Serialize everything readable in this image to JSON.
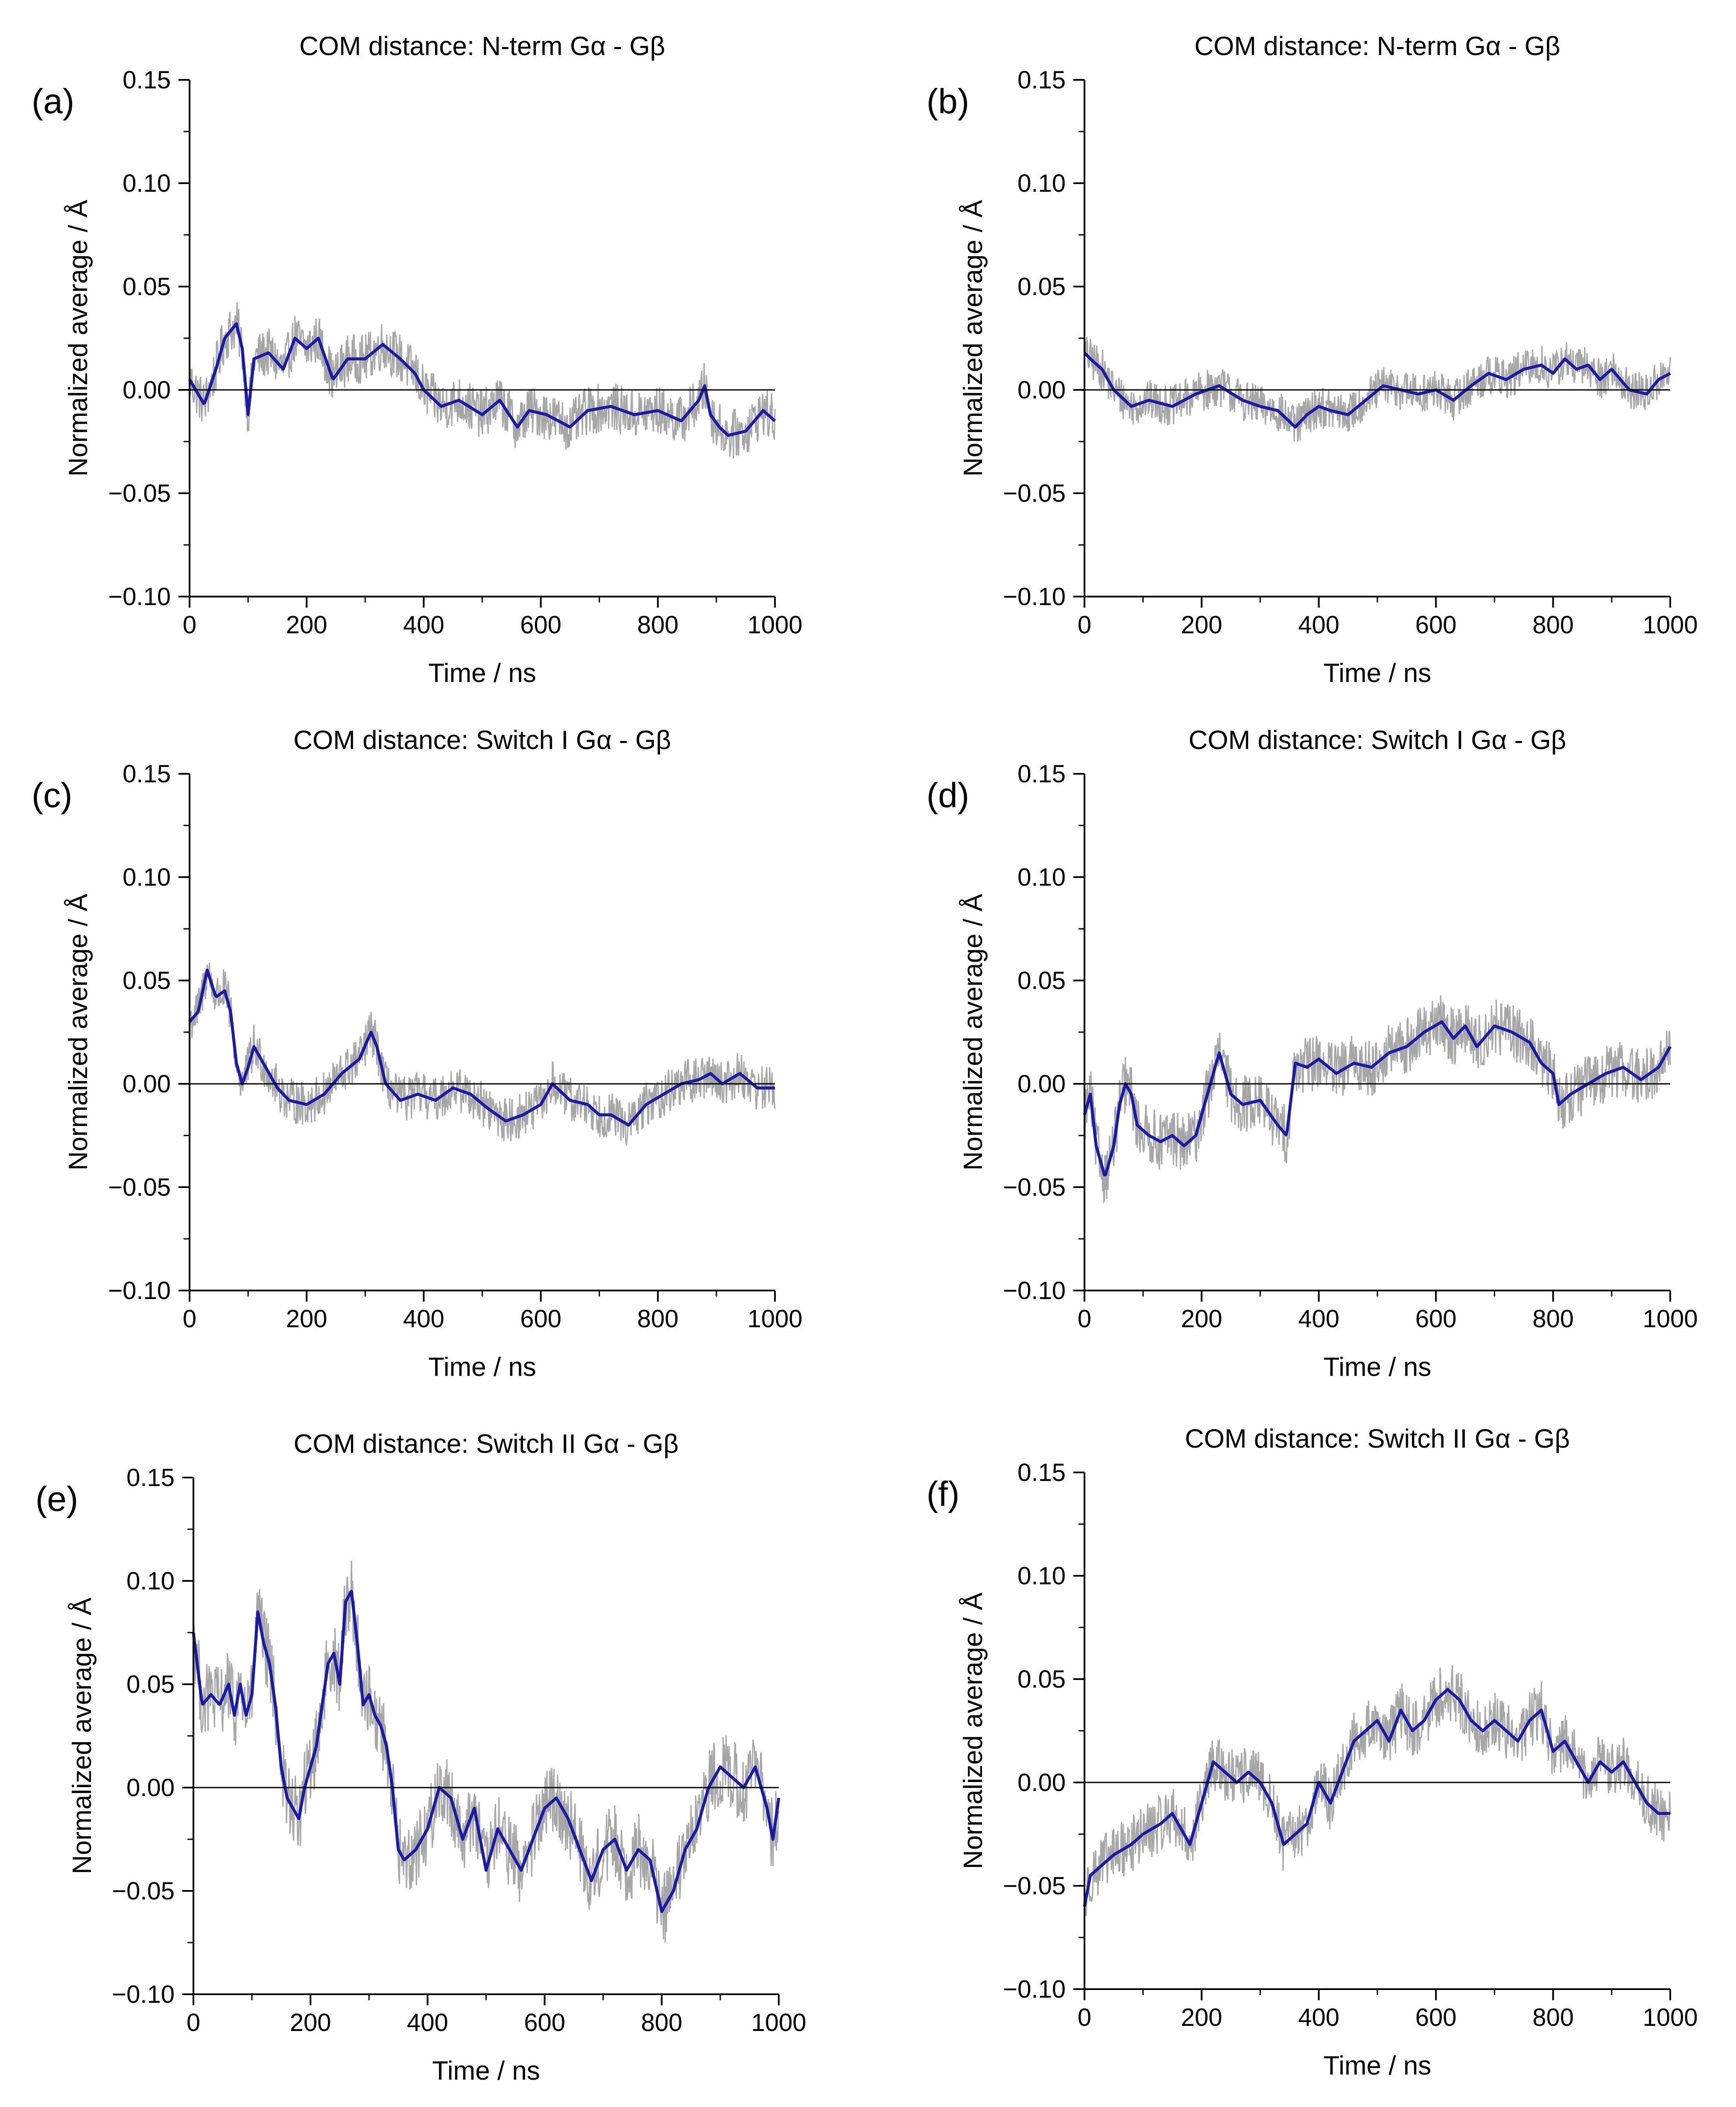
{
  "figure": {
    "colors": {
      "raw": "#a6a6a6",
      "smoothed": "#1a1aa6",
      "axis": "#000000"
    }
  },
  "chart_data": [
    {
      "type": "line",
      "panel_label": "(a)",
      "title": "COM distance: N-term Gα - Gβ",
      "xlabel": "Time / ns",
      "ylabel": "Normalized average / Å",
      "xlim": [
        0,
        1000
      ],
      "ylim": [
        -0.1,
        0.15
      ],
      "xticks": [
        0,
        200,
        400,
        600,
        800,
        1000
      ],
      "xtick_labels": [
        "0",
        "200",
        "400",
        "600",
        "800",
        "1000"
      ],
      "yticks": [
        -0.1,
        -0.05,
        0.0,
        0.05,
        0.1,
        0.15
      ],
      "ytick_labels": [
        "−0.10",
        "−0.05",
        "0.00",
        "0.05",
        "0.10",
        "0.15"
      ],
      "zero_line": true,
      "grid": false,
      "noise_amplitude": 0.012,
      "smoothed": {
        "x": [
          0,
          25,
          45,
          60,
          80,
          90,
          100,
          110,
          135,
          160,
          180,
          200,
          220,
          245,
          270,
          300,
          330,
          360,
          385,
          400,
          430,
          460,
          500,
          530,
          560,
          580,
          610,
          650,
          680,
          720,
          760,
          800,
          840,
          870,
          880,
          890,
          905,
          920,
          950,
          980,
          1000
        ],
        "y": [
          0.005,
          -0.007,
          0.01,
          0.025,
          0.032,
          0.02,
          -0.012,
          0.015,
          0.018,
          0.01,
          0.025,
          0.02,
          0.025,
          0.005,
          0.015,
          0.015,
          0.022,
          0.015,
          0.008,
          0.0,
          -0.008,
          -0.005,
          -0.012,
          -0.005,
          -0.018,
          -0.01,
          -0.012,
          -0.018,
          -0.01,
          -0.008,
          -0.012,
          -0.01,
          -0.015,
          -0.005,
          0.002,
          -0.012,
          -0.018,
          -0.022,
          -0.02,
          -0.01,
          -0.015
        ]
      }
    },
    {
      "type": "line",
      "panel_label": "(b)",
      "title": "COM distance: N-term Gα - Gβ",
      "xlabel": "Time / ns",
      "ylabel": "Normalized average / Å",
      "xlim": [
        0,
        1000
      ],
      "ylim": [
        -0.1,
        0.15
      ],
      "xticks": [
        0,
        200,
        400,
        600,
        800,
        1000
      ],
      "xtick_labels": [
        "0",
        "200",
        "400",
        "600",
        "800",
        "1000"
      ],
      "yticks": [
        -0.1,
        -0.05,
        0.0,
        0.05,
        0.1,
        0.15
      ],
      "ytick_labels": [
        "−0.10",
        "−0.05",
        "0.00",
        "0.05",
        "0.10",
        "0.15"
      ],
      "zero_line": true,
      "grid": false,
      "noise_amplitude": 0.01,
      "smoothed": {
        "x": [
          0,
          10,
          30,
          50,
          80,
          110,
          150,
          190,
          230,
          270,
          300,
          330,
          360,
          380,
          400,
          420,
          450,
          480,
          510,
          540,
          570,
          600,
          630,
          660,
          690,
          720,
          750,
          780,
          800,
          820,
          840,
          860,
          880,
          900,
          930,
          960,
          980,
          1000
        ],
        "y": [
          0.018,
          0.015,
          0.01,
          0.0,
          -0.008,
          -0.005,
          -0.008,
          -0.002,
          0.002,
          -0.005,
          -0.008,
          -0.01,
          -0.018,
          -0.012,
          -0.008,
          -0.01,
          -0.012,
          -0.005,
          0.002,
          0.0,
          -0.002,
          0.0,
          -0.005,
          0.002,
          0.008,
          0.005,
          0.01,
          0.012,
          0.008,
          0.015,
          0.01,
          0.012,
          0.005,
          0.01,
          0.0,
          -0.002,
          0.005,
          0.008
        ]
      }
    },
    {
      "type": "line",
      "panel_label": "(c)",
      "title": "COM distance: Switch I Gα - Gβ",
      "xlabel": "Time / ns",
      "ylabel": "Normalized average / Å",
      "xlim": [
        0,
        1000
      ],
      "ylim": [
        -0.1,
        0.15
      ],
      "xticks": [
        0,
        200,
        400,
        600,
        800,
        1000
      ],
      "xtick_labels": [
        "0",
        "200",
        "400",
        "600",
        "800",
        "1000"
      ],
      "yticks": [
        -0.1,
        -0.05,
        0.0,
        0.05,
        0.1,
        0.15
      ],
      "ytick_labels": [
        "−0.10",
        "−0.05",
        "0.00",
        "0.05",
        "0.10",
        "0.15"
      ],
      "zero_line": true,
      "grid": false,
      "noise_amplitude": 0.011,
      "smoothed": {
        "x": [
          0,
          15,
          30,
          45,
          60,
          70,
          80,
          90,
          100,
          110,
          130,
          150,
          170,
          200,
          230,
          260,
          290,
          310,
          320,
          335,
          360,
          390,
          420,
          450,
          480,
          510,
          540,
          570,
          600,
          620,
          650,
          680,
          700,
          720,
          750,
          780,
          810,
          840,
          870,
          890,
          910,
          940,
          970,
          1000
        ],
        "y": [
          0.03,
          0.035,
          0.055,
          0.042,
          0.045,
          0.035,
          0.01,
          0.0,
          0.008,
          0.018,
          0.008,
          -0.002,
          -0.008,
          -0.01,
          -0.005,
          0.005,
          0.012,
          0.025,
          0.018,
          0.0,
          -0.008,
          -0.005,
          -0.008,
          -0.002,
          -0.005,
          -0.012,
          -0.018,
          -0.015,
          -0.01,
          0.0,
          -0.008,
          -0.01,
          -0.015,
          -0.015,
          -0.02,
          -0.01,
          -0.005,
          0.0,
          0.002,
          0.005,
          0.0,
          0.005,
          -0.002,
          -0.002
        ]
      }
    },
    {
      "type": "line",
      "panel_label": "(d)",
      "title": "COM distance: Switch I Gα - Gβ",
      "xlabel": "Time / ns",
      "ylabel": "Normalized average / Å",
      "xlim": [
        0,
        1000
      ],
      "ylim": [
        -0.1,
        0.15
      ],
      "xticks": [
        0,
        200,
        400,
        600,
        800,
        1000
      ],
      "xtick_labels": [
        "0",
        "200",
        "400",
        "600",
        "800",
        "1000"
      ],
      "yticks": [
        -0.1,
        -0.05,
        0.0,
        0.05,
        0.1,
        0.15
      ],
      "ytick_labels": [
        "−0.10",
        "−0.05",
        "0.00",
        "0.05",
        "0.10",
        "0.15"
      ],
      "zero_line": true,
      "grid": false,
      "noise_amplitude": 0.014,
      "smoothed": {
        "x": [
          0,
          10,
          20,
          35,
          50,
          60,
          70,
          80,
          90,
          110,
          130,
          150,
          170,
          190,
          210,
          230,
          250,
          270,
          300,
          330,
          345,
          360,
          380,
          400,
          430,
          460,
          490,
          520,
          550,
          580,
          610,
          630,
          650,
          670,
          700,
          730,
          760,
          780,
          800,
          810,
          830,
          860,
          890,
          920,
          950,
          980,
          1000
        ],
        "y": [
          -0.015,
          -0.005,
          -0.03,
          -0.045,
          -0.03,
          -0.01,
          0.0,
          -0.005,
          -0.02,
          -0.025,
          -0.028,
          -0.025,
          -0.03,
          -0.025,
          -0.005,
          0.015,
          -0.005,
          -0.01,
          -0.008,
          -0.02,
          -0.025,
          0.01,
          0.008,
          0.012,
          0.005,
          0.01,
          0.008,
          0.015,
          0.018,
          0.025,
          0.03,
          0.022,
          0.028,
          0.018,
          0.028,
          0.025,
          0.02,
          0.01,
          0.005,
          -0.01,
          -0.005,
          0.0,
          0.005,
          0.008,
          0.002,
          0.008,
          0.018
        ]
      }
    },
    {
      "type": "line",
      "panel_label": "(e)",
      "title": "COM distance: Switch II Gα - Gβ",
      "xlabel": "Time / ns",
      "ylabel": "Normalized average / Å",
      "xlim": [
        0,
        1000
      ],
      "ylim": [
        -0.1,
        0.15
      ],
      "xticks": [
        0,
        200,
        400,
        600,
        800,
        1000
      ],
      "xtick_labels": [
        "0",
        "200",
        "400",
        "600",
        "800",
        "1000"
      ],
      "yticks": [
        -0.1,
        -0.05,
        0.0,
        0.05,
        0.1,
        0.15
      ],
      "ytick_labels": [
        "−0.10",
        "−0.05",
        "0.00",
        "0.05",
        "0.10",
        "0.15"
      ],
      "zero_line": true,
      "grid": false,
      "noise_amplitude": 0.018,
      "smoothed": {
        "x": [
          0,
          15,
          30,
          45,
          60,
          70,
          80,
          90,
          100,
          110,
          120,
          130,
          140,
          150,
          160,
          170,
          180,
          190,
          200,
          210,
          220,
          230,
          240,
          250,
          260,
          270,
          280,
          290,
          300,
          310,
          320,
          330,
          340,
          350,
          360,
          380,
          400,
          420,
          440,
          460,
          480,
          500,
          520,
          540,
          560,
          580,
          600,
          620,
          640,
          660,
          680,
          700,
          720,
          740,
          760,
          780,
          800,
          820,
          840,
          860,
          880,
          900,
          920,
          940,
          960,
          980,
          990,
          1000
        ],
        "y": [
          0.075,
          0.04,
          0.045,
          0.04,
          0.05,
          0.035,
          0.05,
          0.035,
          0.045,
          0.085,
          0.07,
          0.06,
          0.04,
          0.01,
          -0.005,
          -0.01,
          -0.015,
          0.0,
          0.01,
          0.02,
          0.04,
          0.06,
          0.065,
          0.05,
          0.09,
          0.095,
          0.07,
          0.04,
          0.045,
          0.035,
          0.03,
          0.02,
          0.0,
          -0.03,
          -0.035,
          -0.03,
          -0.02,
          0.0,
          -0.005,
          -0.025,
          -0.01,
          -0.04,
          -0.02,
          -0.03,
          -0.04,
          -0.025,
          -0.01,
          -0.005,
          -0.015,
          -0.03,
          -0.045,
          -0.03,
          -0.025,
          -0.04,
          -0.03,
          -0.035,
          -0.06,
          -0.05,
          -0.03,
          -0.02,
          0.0,
          0.01,
          0.005,
          0.0,
          0.01,
          -0.01,
          -0.025,
          -0.005
        ]
      }
    },
    {
      "type": "line",
      "panel_label": "(f)",
      "title": "COM distance: Switch II Gα - Gβ",
      "xlabel": "Time / ns",
      "ylabel": "Normalized average / Å",
      "xlim": [
        0,
        1000
      ],
      "ylim": [
        -0.1,
        0.15
      ],
      "xticks": [
        0,
        200,
        400,
        600,
        800,
        1000
      ],
      "xtick_labels": [
        "0",
        "200",
        "400",
        "600",
        "800",
        "1000"
      ],
      "yticks": [
        -0.1,
        -0.05,
        0.0,
        0.05,
        0.1,
        0.15
      ],
      "ytick_labels": [
        "−0.10",
        "−0.05",
        "0.00",
        "0.05",
        "0.10",
        "0.15"
      ],
      "zero_line": true,
      "grid": false,
      "noise_amplitude": 0.014,
      "smoothed": {
        "x": [
          0,
          10,
          30,
          50,
          80,
          100,
          130,
          150,
          180,
          200,
          220,
          240,
          260,
          280,
          300,
          320,
          340,
          360,
          380,
          400,
          420,
          440,
          460,
          480,
          500,
          520,
          540,
          560,
          580,
          600,
          620,
          640,
          660,
          680,
          700,
          720,
          740,
          760,
          780,
          800,
          820,
          840,
          860,
          880,
          900,
          920,
          940,
          960,
          980,
          1000
        ],
        "y": [
          -0.06,
          -0.045,
          -0.04,
          -0.035,
          -0.03,
          -0.025,
          -0.02,
          -0.015,
          -0.03,
          -0.01,
          0.01,
          0.005,
          0.0,
          0.005,
          0.0,
          -0.01,
          -0.03,
          -0.025,
          -0.02,
          0.0,
          -0.01,
          0.005,
          0.02,
          0.025,
          0.03,
          0.02,
          0.035,
          0.025,
          0.03,
          0.04,
          0.045,
          0.04,
          0.03,
          0.025,
          0.03,
          0.025,
          0.02,
          0.03,
          0.035,
          0.015,
          0.02,
          0.01,
          0.0,
          0.01,
          0.005,
          0.01,
          0.0,
          -0.01,
          -0.015,
          -0.015
        ]
      }
    }
  ]
}
